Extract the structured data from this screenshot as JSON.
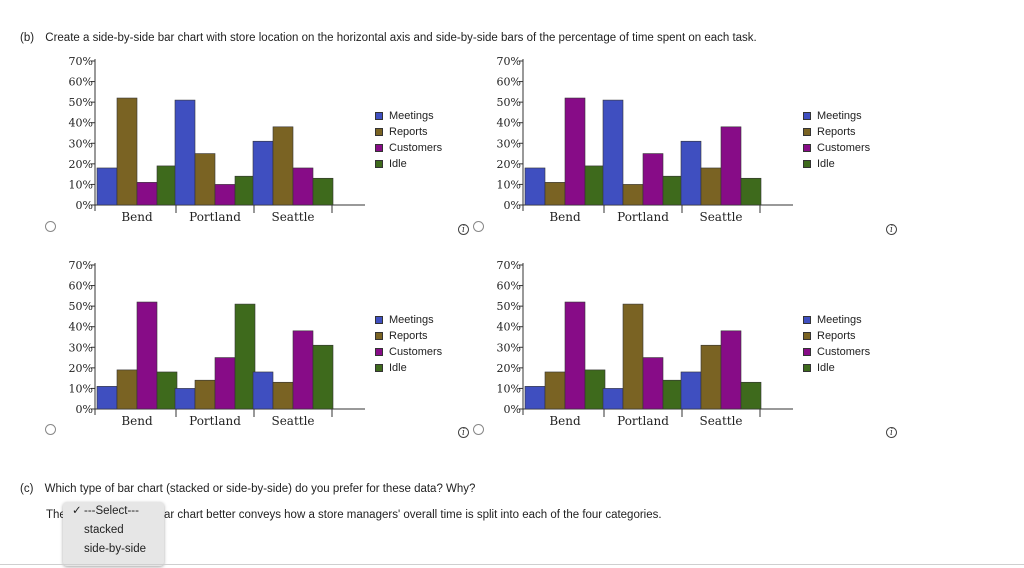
{
  "question_b": {
    "label": "(b)",
    "text": "Create a side-by-side bar chart with store location on the horizontal axis and side-by-side bars of the percentage of time spent on each task."
  },
  "question_c": {
    "label": "(c)",
    "text": "Which type of bar chart (stacked or side-by-side) do you prefer for these data? Why?"
  },
  "answer": {
    "prefix": "The",
    "suffix": "ar chart better conveys how a store managers' overall time is split into each of the four categories."
  },
  "dropdown": {
    "selected": "---Select---",
    "options": [
      "stacked",
      "side-by-side"
    ],
    "check_mark": "✓"
  },
  "info_symbol": "i",
  "colors": {
    "Meetings": "#3f4fc0",
    "Reports": "#7a6323",
    "Customers": "#870c87",
    "Idle": "#3e6a1c"
  },
  "chart_data": [
    {
      "type": "bar",
      "categories": [
        "Bend",
        "Portland",
        "Seattle"
      ],
      "yticks": [
        "0%",
        "10%",
        "20%",
        "30%",
        "40%",
        "50%",
        "60%",
        "70%"
      ],
      "ylim": [
        0,
        70
      ],
      "legend_position": "right",
      "series": [
        {
          "name": "Meetings",
          "values": [
            18,
            51,
            31
          ]
        },
        {
          "name": "Reports",
          "values": [
            52,
            25,
            38
          ]
        },
        {
          "name": "Customers",
          "values": [
            11,
            10,
            18
          ]
        },
        {
          "name": "Idle",
          "values": [
            19,
            14,
            13
          ]
        }
      ]
    },
    {
      "type": "bar",
      "categories": [
        "Bend",
        "Portland",
        "Seattle"
      ],
      "yticks": [
        "0%",
        "10%",
        "20%",
        "30%",
        "40%",
        "50%",
        "60%",
        "70%"
      ],
      "ylim": [
        0,
        70
      ],
      "legend_position": "right",
      "series": [
        {
          "name": "Meetings",
          "values": [
            18,
            51,
            31
          ]
        },
        {
          "name": "Reports",
          "values": [
            11,
            10,
            18
          ]
        },
        {
          "name": "Customers",
          "values": [
            52,
            25,
            38
          ]
        },
        {
          "name": "Idle",
          "values": [
            19,
            14,
            13
          ]
        }
      ]
    },
    {
      "type": "bar",
      "categories": [
        "Bend",
        "Portland",
        "Seattle"
      ],
      "yticks": [
        "0%",
        "10%",
        "20%",
        "30%",
        "40%",
        "50%",
        "60%",
        "70%"
      ],
      "ylim": [
        0,
        70
      ],
      "legend_position": "right",
      "series": [
        {
          "name": "Meetings",
          "values": [
            11,
            10,
            18
          ]
        },
        {
          "name": "Reports",
          "values": [
            19,
            14,
            13
          ]
        },
        {
          "name": "Customers",
          "values": [
            52,
            25,
            38
          ]
        },
        {
          "name": "Idle",
          "values": [
            18,
            51,
            31
          ]
        }
      ]
    },
    {
      "type": "bar",
      "categories": [
        "Bend",
        "Portland",
        "Seattle"
      ],
      "yticks": [
        "0%",
        "10%",
        "20%",
        "30%",
        "40%",
        "50%",
        "60%",
        "70%"
      ],
      "ylim": [
        0,
        70
      ],
      "legend_position": "right",
      "series": [
        {
          "name": "Meetings",
          "values": [
            11,
            10,
            18
          ]
        },
        {
          "name": "Reports",
          "values": [
            18,
            51,
            31
          ]
        },
        {
          "name": "Customers",
          "values": [
            52,
            25,
            38
          ]
        },
        {
          "name": "Idle",
          "values": [
            19,
            14,
            13
          ]
        }
      ]
    }
  ]
}
